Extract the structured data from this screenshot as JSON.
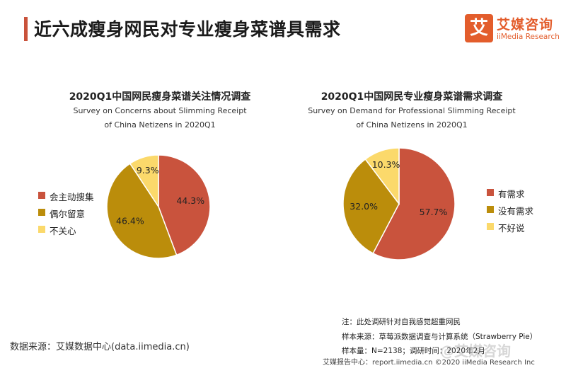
{
  "header": {
    "title": "近六成瘦身网民对专业瘦身菜谱具需求",
    "logo_mark": "艾",
    "logo_cn": "艾媒咨询",
    "logo_en": "iiMedia Research"
  },
  "chart_data": [
    {
      "type": "pie",
      "title": "2020Q1中国网民瘦身菜谱关注情况调查",
      "subtitle_lines": [
        "Survey on Concerns about Slimming Receipt",
        "of China Netizens in 2020Q1"
      ],
      "labels": [
        "会主动搜集",
        "偶尔留意",
        "不关心"
      ],
      "values": [
        44.3,
        46.4,
        9.3
      ],
      "value_labels": [
        "44.3%",
        "46.4%",
        "9.3%"
      ],
      "colors": [
        "#c9533d",
        "#bb8d0b",
        "#fbd96b"
      ],
      "legend_position": "left"
    },
    {
      "type": "pie",
      "title": "2020Q1中国网民专业瘦身菜谱需求调查",
      "subtitle_lines": [
        "Survey on Demand for Professional Slimming Receipt",
        "of China Netizens in 2020Q1"
      ],
      "labels": [
        "有需求",
        "没有需求",
        "不好说"
      ],
      "values": [
        57.7,
        32.0,
        10.3
      ],
      "value_labels": [
        "57.7%",
        "32.0%",
        "10.3%"
      ],
      "colors": [
        "#c9533d",
        "#bb8d0b",
        "#fbd96b"
      ],
      "legend_position": "right"
    }
  ],
  "source_left": "数据来源：艾媒数据中心(data.iimedia.cn)",
  "notes": [
    "注：此处调研针对自我感觉超重网民",
    "样本来源：草莓派数据调查与计算系统（Strawberry Pie）",
    "样本量：N=2138；调研时间：2020年2月"
  ],
  "footer": "艾媒报告中心：report.iimedia.cn  ©2020  iiMedia Research Inc",
  "watermark": "@艾媒咨询"
}
